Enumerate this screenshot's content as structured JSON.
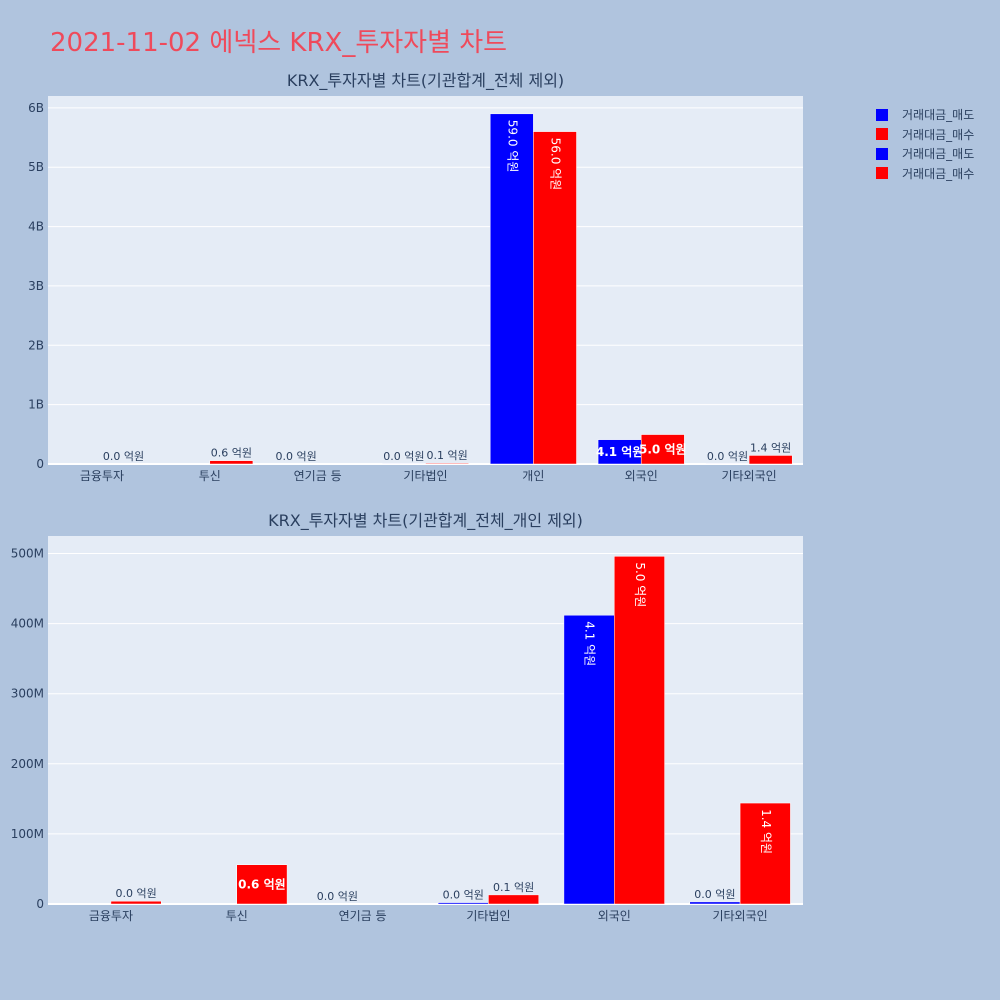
{
  "page_title": "2021-11-02 에넥스 KRX_투자자별 차트",
  "legend": [
    {
      "label": "거래대금_매도",
      "color": "#0000ff"
    },
    {
      "label": "거래대금_매수",
      "color": "#ff0000"
    },
    {
      "label": "거래대금_매도",
      "color": "#0000ff"
    },
    {
      "label": "거래대금_매수",
      "color": "#ff0000"
    }
  ],
  "chart_data": [
    {
      "type": "bar",
      "title": "KRX_투자자별 차트(기관합계_전체 제외)",
      "categories": [
        "금융투자",
        "투신",
        "연기금 등",
        "기타법인",
        "개인",
        "외국인",
        "기타외국인"
      ],
      "ylim": [
        0,
        6200000000
      ],
      "yticks": [
        0,
        1000000000,
        2000000000,
        3000000000,
        4000000000,
        5000000000,
        6000000000
      ],
      "yticklabels": [
        "0",
        "1B",
        "2B",
        "3B",
        "4B",
        "5B",
        "6B"
      ],
      "grid": true,
      "legend_position": "top-right",
      "series": [
        {
          "name": "거래대금_매도",
          "color": "#0000ff",
          "values": [
            0,
            0,
            0,
            2000000,
            5900000000,
            410000000,
            3000000
          ],
          "labels": [
            "",
            "",
            "0.0 억원",
            "0.0 억원",
            "59.0 억원",
            "4.1 억원",
            "0.0 억원"
          ]
        },
        {
          "name": "거래대금_매수",
          "color": "#ff0000",
          "values": [
            4000000,
            56000000,
            0,
            13000000,
            5600000000,
            496000000,
            144000000
          ],
          "labels": [
            "0.0 억원",
            "0.6 억원",
            "",
            "0.1 억원",
            "56.0 억원",
            "5.0 억원",
            "1.4 억원"
          ]
        }
      ]
    },
    {
      "type": "bar",
      "title": "KRX_투자자별 차트(기관합계_전체_개인 제외)",
      "categories": [
        "금융투자",
        "투신",
        "연기금 등",
        "기타법인",
        "외국인",
        "기타외국인"
      ],
      "ylim": [
        0,
        525000000
      ],
      "yticks": [
        0,
        100000000,
        200000000,
        300000000,
        400000000,
        500000000
      ],
      "yticklabels": [
        "0",
        "100M",
        "200M",
        "300M",
        "400M",
        "500M"
      ],
      "grid": true,
      "series": [
        {
          "name": "거래대금_매도",
          "color": "#0000ff",
          "values": [
            0,
            0,
            0,
            2000000,
            412000000,
            3000000
          ],
          "labels": [
            "",
            "",
            "0.0 억원",
            "0.0 억원",
            "4.1 억원",
            "0.0 억원"
          ]
        },
        {
          "name": "거래대금_매수",
          "color": "#ff0000",
          "values": [
            4000000,
            56000000,
            0,
            13000000,
            496000000,
            144000000
          ],
          "labels": [
            "0.0 억원",
            "0.6 억원",
            "",
            "0.1 억원",
            "5.0 억원",
            "1.4 억원"
          ]
        }
      ]
    }
  ]
}
